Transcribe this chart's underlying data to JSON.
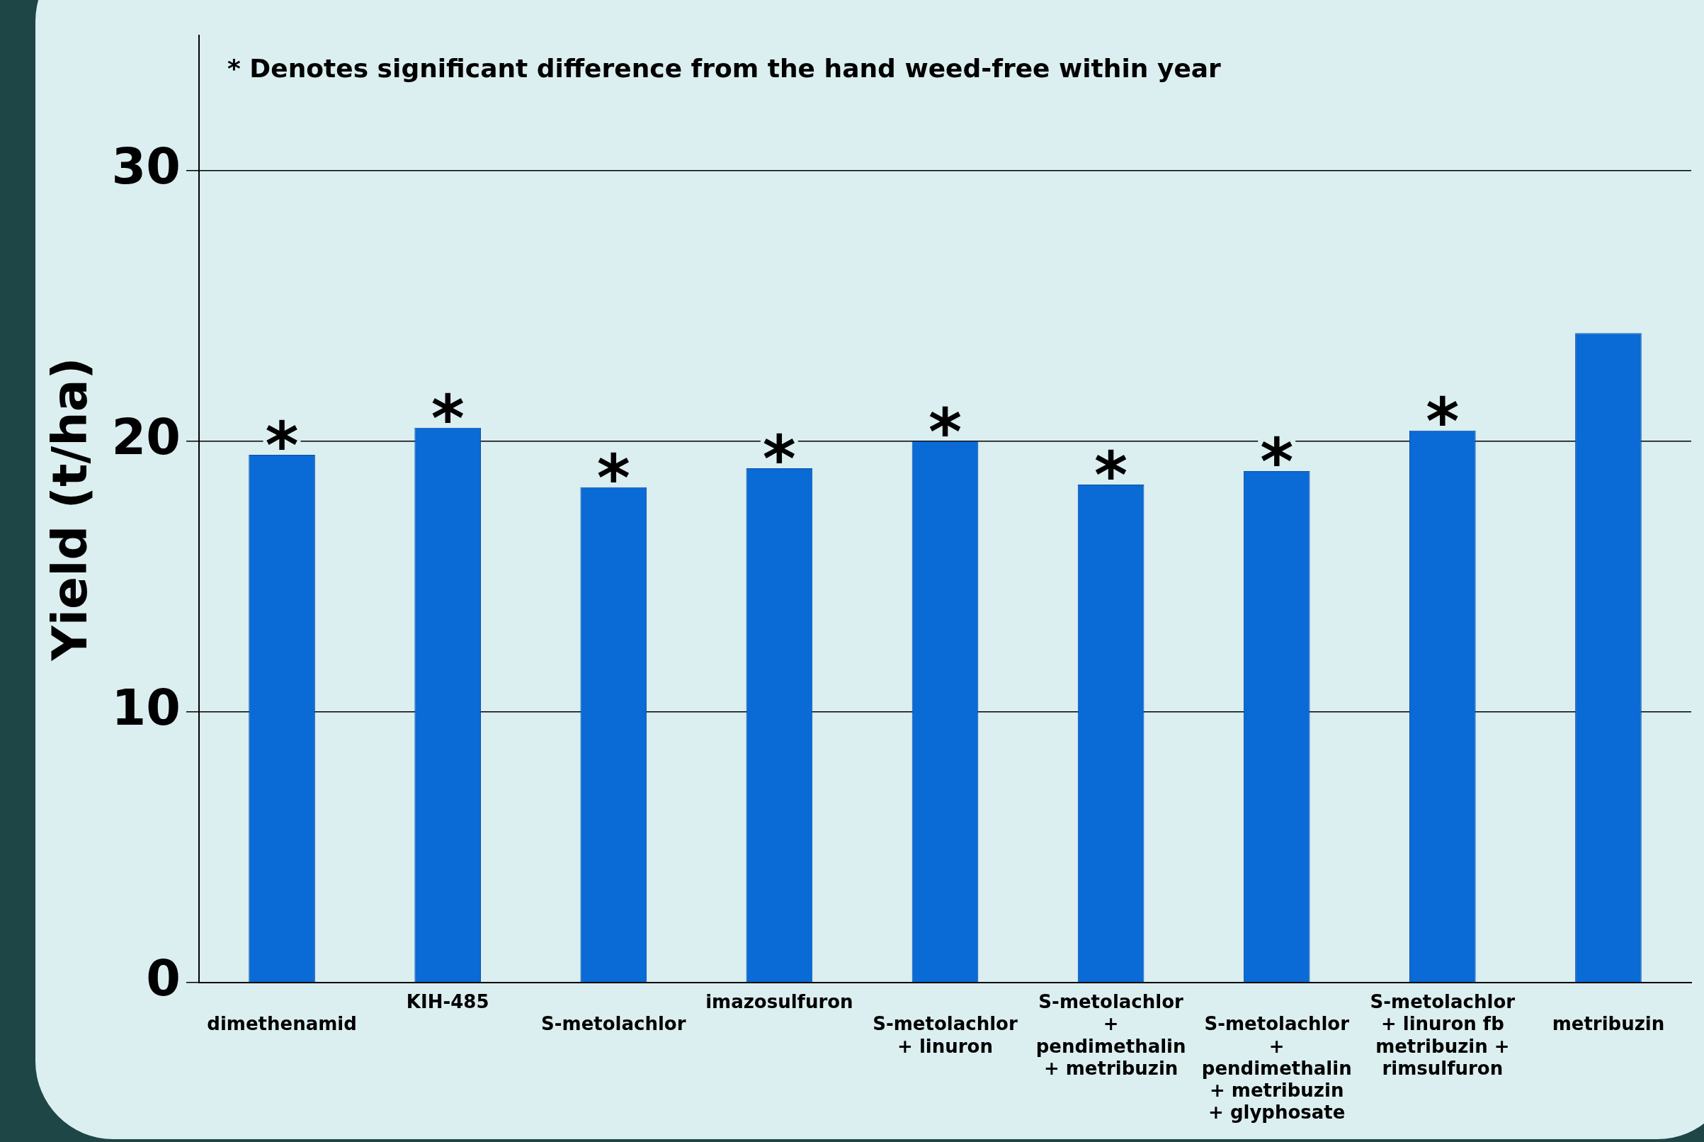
{
  "chart_data": {
    "type": "bar",
    "ylabel": "Yield (t/ha)",
    "categories": [
      "dimethenamid",
      "KIH-485",
      "S-metolachlor",
      "imazosulfuron",
      "S-metolachlor + linuron",
      "S-metolachlor + pendimethalin + metribuzin",
      "S-metolachlor + pendimethalin + metribuzin + glyphosate",
      "S-metolachlor + linuron fb metribuzin + rimsulfuron",
      "metribuzin"
    ],
    "values": [
      19.5,
      20.5,
      18.3,
      19.0,
      20.0,
      18.4,
      18.9,
      20.4,
      24.0
    ],
    "color": "#0a6ad6",
    "ylim": [
      0,
      35
    ],
    "yticks": [
      0,
      10,
      20,
      30
    ],
    "grid": "y",
    "legend": false,
    "annotations": [
      "* Denotes significant difference from the hand weed-free within year",
      {
        "text": "*",
        "x": "dimethenamid",
        "y": 19.5
      },
      {
        "text": "*",
        "x": "KIH-485",
        "y": 20.5
      },
      {
        "text": "*",
        "x": "S-metolachlor",
        "y": 18.3
      },
      {
        "text": "*",
        "x": "imazosulfuron",
        "y": 19.0
      },
      {
        "text": "*",
        "x": "S-metolachlor + linuron",
        "y": 20.0
      },
      {
        "text": "*",
        "x": "S-metolachlor + pendimethalin + metribuzin",
        "y": 18.4
      },
      {
        "text": "*",
        "x": "S-metolachlor + pendimethalin + metribuzin + glyphosate",
        "y": 18.9
      },
      {
        "text": "*",
        "x": "S-metolachlor + linuron fb metribuzin + rimsulfuron",
        "y": 20.4
      }
    ]
  }
}
